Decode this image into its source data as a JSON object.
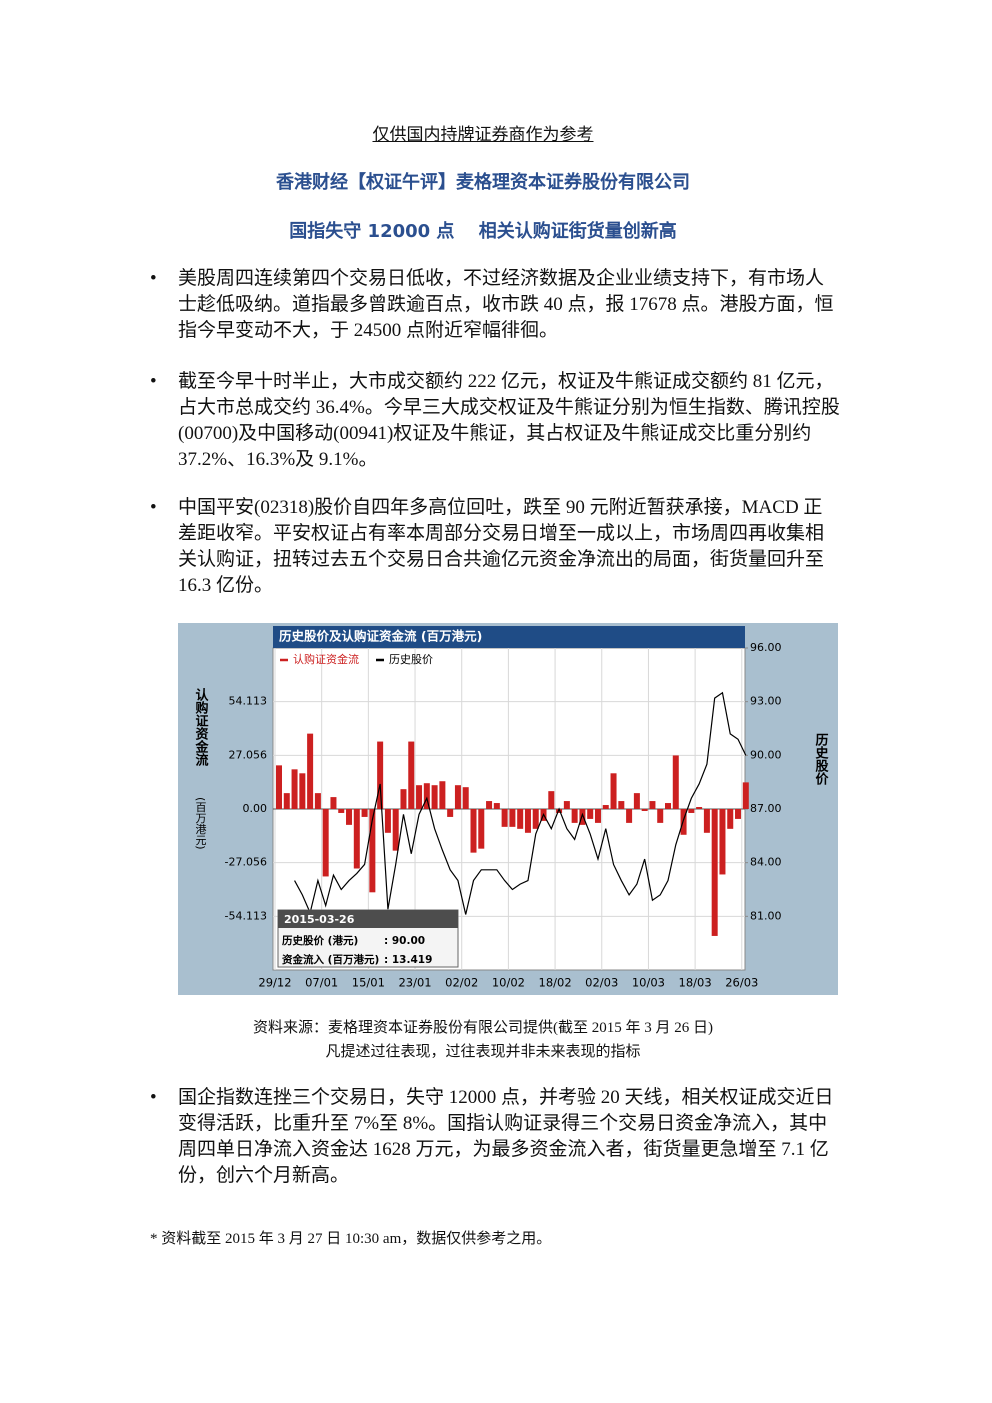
{
  "header": {
    "notice": "仅供国内持牌证券商作为参考",
    "title": "香港财经【权证午评】麦格理资本证券股份有限公司",
    "headline": "国指失守 12000 点　 相关认购证街货量创新高"
  },
  "bullets": [
    "美股周四连续第四个交易日低收，不过经济数据及企业业绩支持下，有市场人士趁低吸纳。道指最多曾跌逾百点，收市跌 40 点，报 17678 点。港股方面，恒指今早变动不大，于 24500 点附近窄幅徘徊。",
    "截至今早十时半止，大市成交额约 222 亿元，权证及牛熊证成交额约 81 亿元，占大市总成交约 36.4%。今早三大成交权证及牛熊证分别为恒生指数、腾讯控股(00700)及中国移动(00941)权证及牛熊证，其占权证及牛熊证成交比重分别约 37.2%、16.3%及 9.1%。",
    "中国平安(02318)股价自四年多高位回吐，跌至 90 元附近暂获承接，MACD 正差距收窄。平安权证占有率本周部分交易日增至一成以上，市场周四再收集相关认购证，扭转过去五个交易日合共逾亿元资金净流出的局面，街货量回升至 16.3 亿份。"
  ],
  "chart_data": {
    "type": "bar",
    "title": "历史股价及认购证资金流 (百万港元)",
    "y_label": "认购证资金流",
    "y_label_unit": "(百万港元)",
    "y2_label": "历史股价",
    "categories": [
      "29/12",
      null,
      null,
      null,
      null,
      null,
      "07/01",
      null,
      null,
      null,
      null,
      null,
      "15/01",
      null,
      null,
      null,
      null,
      null,
      "23/01",
      null,
      null,
      null,
      null,
      null,
      "02/02",
      null,
      null,
      null,
      null,
      null,
      "10/02",
      null,
      null,
      null,
      null,
      null,
      "18/02",
      null,
      null,
      null,
      null,
      null,
      "02/03",
      null,
      null,
      null,
      null,
      null,
      "10/03",
      null,
      null,
      null,
      null,
      null,
      "18/03",
      null,
      null,
      null,
      null,
      null,
      "26/03"
    ],
    "series": [
      {
        "name": "认购证资金流",
        "type": "bar",
        "color": "#cc2020",
        "values": [
          22,
          8,
          20,
          18,
          38,
          8,
          -34,
          6,
          -2,
          -8,
          -30,
          -4,
          -42,
          34,
          -12,
          -21,
          10,
          34,
          12,
          13,
          12,
          14,
          -4,
          12,
          11,
          -22,
          -20,
          4,
          3,
          -9,
          -9,
          -10,
          -12,
          -10,
          -6,
          9,
          -2,
          4,
          -7,
          -8,
          -5,
          -7,
          2,
          18,
          4,
          -7,
          8,
          -1,
          4,
          -7,
          3,
          27,
          -13,
          -2,
          1,
          -12,
          -64,
          -33,
          -10,
          -5,
          13.419
        ]
      },
      {
        "name": "历史股价",
        "type": "line",
        "color": "#000000",
        "axis": "y2",
        "values": [
          null,
          null,
          83.0,
          82.2,
          81.2,
          83.0,
          81.6,
          83.3,
          82.5,
          83.0,
          83.4,
          83.9,
          86.4,
          88.4,
          81.4,
          83.9,
          86.7,
          84.5,
          86.7,
          87.6,
          85.9,
          84.7,
          83.6,
          83.0,
          81.1,
          83.0,
          83.6,
          83.6,
          83.6,
          83.0,
          82.5,
          82.8,
          83.0,
          85.6,
          86.7,
          85.9,
          87.0,
          85.9,
          85.3,
          86.7,
          85.6,
          84.2,
          85.9,
          83.9,
          83.0,
          82.2,
          82.8,
          84.2,
          81.9,
          82.2,
          83.0,
          85.0,
          86.4,
          87.6,
          88.4,
          89.5,
          93.2,
          93.5,
          91.2,
          90.9,
          90.0
        ]
      }
    ],
    "ylim": [
      -81.169,
      81.169
    ],
    "yticks": [
      {
        "value": -54.113,
        "label": "-54.113"
      },
      {
        "value": -27.056,
        "label": "-27.056"
      },
      {
        "value": 0,
        "label": "0.00"
      },
      {
        "value": 27.056,
        "label": "27.056"
      },
      {
        "value": 54.113,
        "label": "54.113"
      }
    ],
    "y2lim": [
      78,
      96
    ],
    "y2ticks": [
      {
        "value": 81,
        "label": "81.00"
      },
      {
        "value": 84,
        "label": "84.00"
      },
      {
        "value": 87,
        "label": "87.00"
      },
      {
        "value": 90,
        "label": "90.00"
      },
      {
        "value": 93,
        "label": "93.00"
      },
      {
        "value": 96,
        "label": "96.00"
      }
    ],
    "grid": true,
    "tooltip": {
      "date": "2015-03-26",
      "rows": [
        [
          "历史股价 (港元)",
          ": 90.00"
        ],
        [
          "资金流入 (百万港元)",
          ": 13.419"
        ]
      ]
    }
  },
  "source": [
    "资料来源：麦格理资本证券股份有限公司提供(截至 2015 年 3 月 26 日)",
    "凡提述过往表现，过往表现并非未来表现的指标"
  ],
  "bullets_after": [
    "国企指数连挫三个交易日，失守 12000 点，并考验 20 天线，相关权证成交近日变得活跃，比重升至 7%至 8%。国指认购证录得三个交易日资金净流入，其中周四单日净流入资金达 1628 万元，为最多资金流入者，街货量更急增至 7.1 亿份，创六个月新高。"
  ],
  "footnote": "*  资料截至 2015 年 3 月 27 日 10:30 am，数据仅供参考之用。"
}
